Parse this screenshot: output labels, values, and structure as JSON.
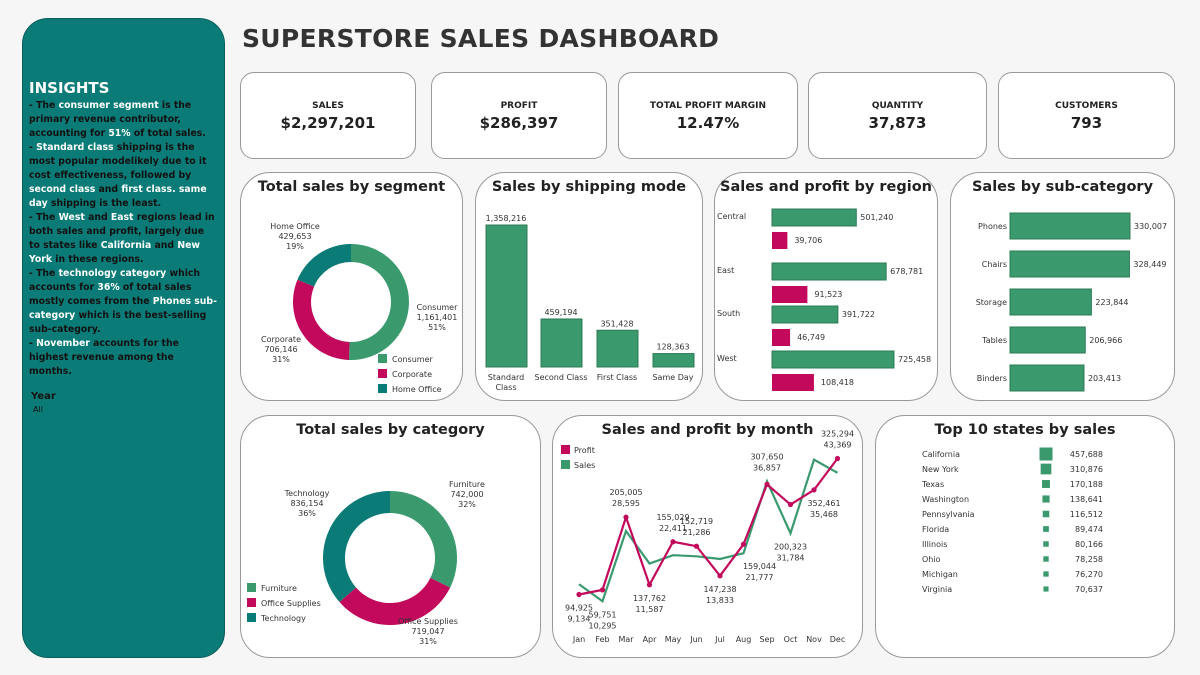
{
  "colors": {
    "teal": "#0b7b77",
    "green": "#3a9a6e",
    "crimson": "#c2095c"
  },
  "title": "SUPERSTORE SALES DASHBOARD",
  "sidebar": {
    "heading": "INSIGHTS",
    "insights": [
      [
        [
          "- The ",
          0
        ],
        [
          "consumer segment",
          1
        ],
        [
          " is the primary revenue contributor, accounting for  ",
          0
        ],
        [
          "51%",
          1
        ],
        [
          " of total sales.",
          0
        ]
      ],
      [
        [
          "-  ",
          0
        ],
        [
          "Standard class",
          1
        ],
        [
          " shipping is the most popular modelikely due to it cost effectiveness, followed by ",
          0
        ],
        [
          "second class",
          1
        ],
        [
          " and ",
          0
        ],
        [
          "first class",
          1
        ],
        [
          ". same day",
          1
        ],
        [
          " shipping is the least.",
          0
        ]
      ],
      [
        [
          "- The ",
          0
        ],
        [
          "West",
          1
        ],
        [
          " and ",
          0
        ],
        [
          "East",
          1
        ],
        [
          " regions lead in both sales and profit, largely due to states like ",
          0
        ],
        [
          "California",
          1
        ],
        [
          " and ",
          0
        ],
        [
          "New York",
          1
        ],
        [
          " in these regions.",
          0
        ]
      ],
      [
        [
          "- The ",
          0
        ],
        [
          "technology category",
          1
        ],
        [
          " which accounts for ",
          0
        ],
        [
          "36%",
          1
        ],
        [
          " of total sales mostly comes from the ",
          0
        ],
        [
          "Phones sub-category",
          1
        ],
        [
          " which is the best-selling sub-category.",
          0
        ]
      ],
      [
        [
          "-  ",
          0
        ],
        [
          "November",
          1
        ],
        [
          " accounts for the highest revenue among the months.",
          0
        ]
      ]
    ],
    "filter": {
      "label": "Year",
      "value": "All"
    }
  },
  "kpis": [
    {
      "label": "SALES",
      "value": "$2,297,201"
    },
    {
      "label": "PROFIT",
      "value": "$286,397"
    },
    {
      "label": "TOTAL PROFIT MARGIN",
      "value": "12.47%"
    },
    {
      "label": "QUANTITY",
      "value": "37,873"
    },
    {
      "label": "CUSTOMERS",
      "value": "793"
    }
  ],
  "chart_data": [
    {
      "id": "segment",
      "type": "pie",
      "title": "Total sales by segment",
      "categories": [
        "Consumer",
        "Corporate",
        "Home Office"
      ],
      "values": [
        1161401,
        706146,
        429653
      ],
      "labels": [
        "51%",
        "31%",
        "19%"
      ],
      "legend": [
        "Consumer",
        "Corporate",
        "Home Office"
      ],
      "legend_position": "bottom-right"
    },
    {
      "id": "shipping",
      "type": "bar",
      "title": "Sales by shipping mode",
      "categories": [
        "Standard Class",
        "Second Class",
        "First Class",
        "Same Day"
      ],
      "values": [
        1358216,
        459194,
        351428,
        128363
      ]
    },
    {
      "id": "region",
      "type": "bar",
      "title": "Sales and profit by region",
      "orientation": "horizontal",
      "categories": [
        "Central",
        "East",
        "South",
        "West"
      ],
      "series": [
        {
          "values": [
            501240,
            678781,
            391722,
            725458
          ]
        },
        {
          "values": [
            39706,
            91523,
            46749,
            108418
          ]
        }
      ]
    },
    {
      "id": "subcat",
      "type": "bar",
      "title": "Sales by sub-category",
      "orientation": "horizontal",
      "categories": [
        "Phones",
        "Chairs",
        "Storage",
        "Tables",
        "Binders"
      ],
      "values": [
        330007,
        328449,
        223844,
        206966,
        203413
      ]
    },
    {
      "id": "category",
      "type": "pie",
      "title": "Total sales by category",
      "categories": [
        "Furniture",
        "Office Supplies",
        "Technology"
      ],
      "values": [
        742000,
        719047,
        836154
      ],
      "labels": [
        "32%",
        "31%",
        "36%"
      ],
      "legend": [
        "Furniture",
        "Office Supplies",
        "Technology"
      ],
      "legend_position": "bottom-left"
    },
    {
      "id": "month",
      "type": "line",
      "title": "Sales and profit by month",
      "categories": [
        "Jan",
        "Feb",
        "Mar",
        "Apr",
        "May",
        "Jun",
        "Jul",
        "Aug",
        "Sep",
        "Oct",
        "Nov",
        "Dec"
      ],
      "series": [
        {
          "name": "Profit",
          "values": [
            9134,
            10295,
            28595,
            11587,
            22411,
            21286,
            13833,
            21777,
            36857,
            31784,
            35468,
            43369
          ]
        },
        {
          "name": "Sales",
          "values": [
            94925,
            59751,
            205005,
            137762,
            155029,
            152719,
            147238,
            159044,
            307650,
            200323,
            352461,
            325294
          ]
        }
      ],
      "legend_position": "top-left"
    },
    {
      "id": "states",
      "type": "table",
      "title": "Top 10 states by sales",
      "categories": [
        "California",
        "New York",
        "Texas",
        "Washington",
        "Pennsylvania",
        "Florida",
        "Illinois",
        "Ohio",
        "Michigan",
        "Virginia"
      ],
      "values": [
        457688,
        310876,
        170188,
        138641,
        116512,
        89474,
        80166,
        78258,
        76270,
        70637
      ]
    }
  ]
}
